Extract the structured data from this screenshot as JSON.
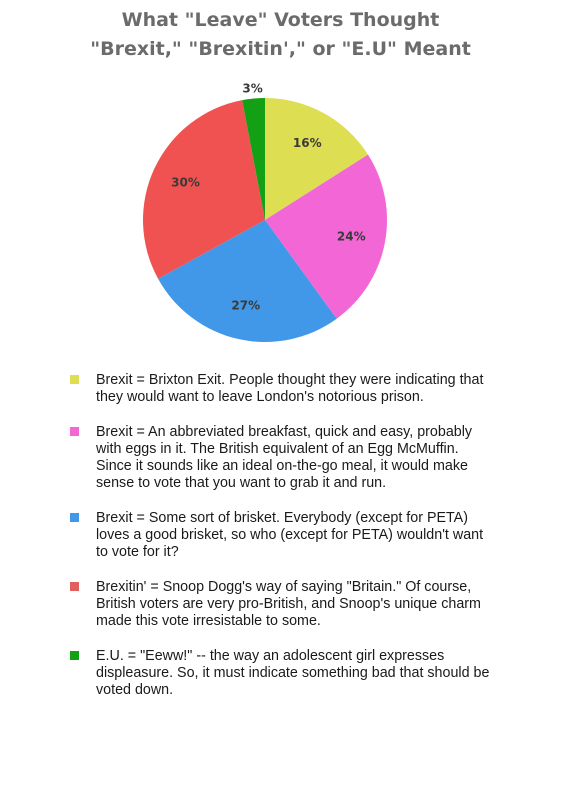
{
  "chart_data": {
    "type": "pie",
    "title_lines": [
      "What \"Leave\" Voters Thought",
      "\"Brexit,\" \"Brexitin',\" or \"E.U\" Meant"
    ],
    "slices": [
      {
        "value": 16,
        "label": "16%",
        "color": "#dede52",
        "legend": "Brexit = Brixton Exit. People thought they were indicating that they would want to leave London's notorious prison."
      },
      {
        "value": 24,
        "label": "24%",
        "color": "#f266d6",
        "legend": "Brexit = An abbreviated breakfast, quick and easy, probably with eggs in it. The British equivalent of an Egg McMuffin. Since it sounds like an ideal on-the-go meal, it would make sense to vote that you want to grab it and run."
      },
      {
        "value": 27,
        "label": "27%",
        "color": "#4198e8",
        "legend": "Brexit = Some sort of brisket. Everybody (except for PETA) loves a good brisket, so who (except for PETA) wouldn't want to vote for it?"
      },
      {
        "value": 30,
        "label": "30%",
        "color": "#f05252",
        "legend": "Brexitin' = Snoop Dogg's way of saying \"Britain.\" Of course, British voters are very pro-British, and Snoop's unique charm made this vote irresistable to some."
      },
      {
        "value": 3,
        "label": "3%",
        "color": "#14a014",
        "legend": "E.U. = \"Eeww!\" -- the way an adolescent girl expresses displeasure. So, it must indicate something bad that should be voted down."
      }
    ],
    "start_angle_deg": 0,
    "direction": "clockwise",
    "legend_position": "bottom"
  },
  "legend_colors": {
    "yellow": "#dede52",
    "pink": "#f266d6",
    "blue": "#4198e8",
    "red": "#e06060",
    "green": "#14a014"
  }
}
